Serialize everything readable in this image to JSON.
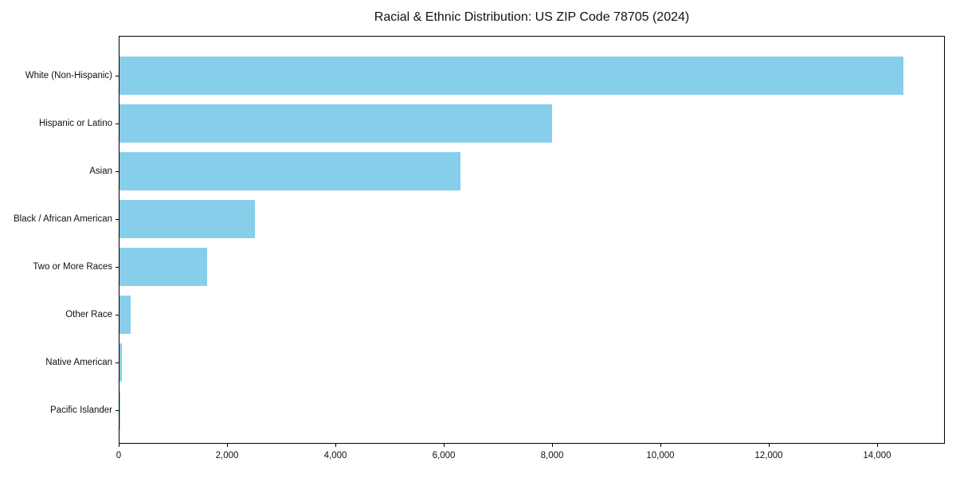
{
  "colors": {
    "bar": "#87CEEB",
    "axis": "#000000",
    "text": "#111111",
    "background": "#ffffff"
  },
  "chart_data": {
    "type": "bar",
    "orientation": "horizontal",
    "title": "Racial & Ethnic Distribution: US ZIP Code 78705 (2024)",
    "xlabel": "",
    "ylabel": "",
    "categories": [
      "White (Non-Hispanic)",
      "Hispanic or Latino",
      "Asian",
      "Black / African American",
      "Two or More Races",
      "Other Race",
      "Native American",
      "Pacific Islander"
    ],
    "values": [
      14500,
      8000,
      6300,
      2500,
      1620,
      200,
      45,
      10
    ],
    "xlim": [
      0,
      15250
    ],
    "xticks": [
      0,
      2000,
      4000,
      6000,
      8000,
      10000,
      12000,
      14000
    ],
    "xtick_labels": [
      "0",
      "2,000",
      "4,000",
      "6,000",
      "8,000",
      "10,000",
      "12,000",
      "14,000"
    ],
    "grid": false,
    "legend": false,
    "bar_color": "#87CEEB"
  }
}
